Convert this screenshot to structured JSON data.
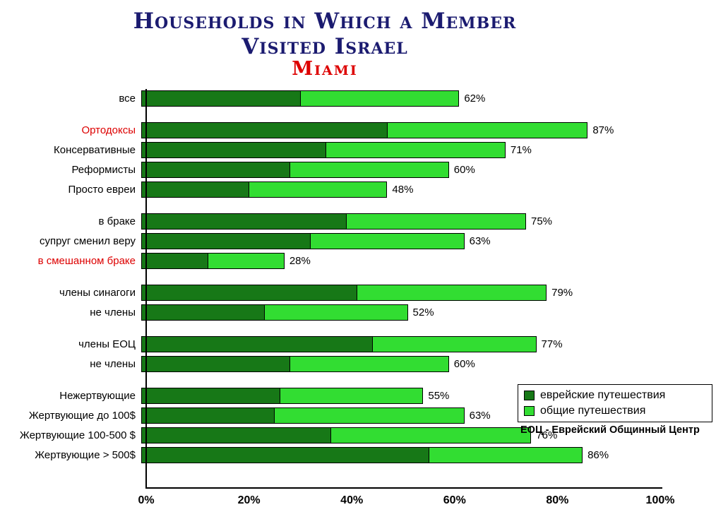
{
  "title": {
    "line1": "Households in Which a Member",
    "line2": "Visited Israel",
    "city": "Miami"
  },
  "colors": {
    "title_navy": "#1B1B70",
    "city_red": "#DD0000",
    "label_red": "#DD0000",
    "label_black": "#000000",
    "jewish_dark_green": "#177817",
    "general_light_green": "#32DD32"
  },
  "legend": {
    "items": [
      {
        "label": "еврейские путешествия",
        "color_key": "jewish_dark_green"
      },
      {
        "label": "общие путешествия",
        "color_key": "general_light_green"
      }
    ],
    "note": "ЕОЦ - Еврейский Общинный Центр"
  },
  "axis": {
    "ticks": [
      "0%",
      "20%",
      "40%",
      "60%",
      "80%",
      "100%"
    ],
    "tick_values": [
      0,
      20,
      40,
      60,
      80,
      100
    ],
    "max": 100
  },
  "chart_data": {
    "type": "bar",
    "orientation": "horizontal",
    "stacked": true,
    "title": "Households in Which a Member Visited Israel — Miami",
    "xlabel": "",
    "ylabel": "",
    "xlim": [
      0,
      100
    ],
    "grid": false,
    "legend_position": "right-inside",
    "series_names": [
      "еврейские путешествия",
      "общие путешествия"
    ],
    "groups": [
      {
        "rows": [
          {
            "label": "все",
            "red": false,
            "jewish": 31,
            "total": 62,
            "value_label": "62%"
          }
        ]
      },
      {
        "rows": [
          {
            "label": "Ортодоксы",
            "red": true,
            "jewish": 48,
            "total": 87,
            "value_label": "87%"
          },
          {
            "label": "Консервативные",
            "red": false,
            "jewish": 36,
            "total": 71,
            "value_label": "71%"
          },
          {
            "label": "Реформисты",
            "red": false,
            "jewish": 29,
            "total": 60,
            "value_label": "60%"
          },
          {
            "label": "Просто евреи",
            "red": false,
            "jewish": 21,
            "total": 48,
            "value_label": "48%"
          }
        ]
      },
      {
        "rows": [
          {
            "label": "в браке",
            "red": false,
            "jewish": 40,
            "total": 75,
            "value_label": "75%"
          },
          {
            "label": "супруг сменил веру",
            "red": false,
            "jewish": 33,
            "total": 63,
            "value_label": "63%"
          },
          {
            "label": "в смешанном браке",
            "red": true,
            "jewish": 13,
            "total": 28,
            "value_label": "28%"
          }
        ]
      },
      {
        "rows": [
          {
            "label": "члены синагоги",
            "red": false,
            "jewish": 42,
            "total": 79,
            "value_label": "79%"
          },
          {
            "label": "не члены",
            "red": false,
            "jewish": 24,
            "total": 52,
            "value_label": "52%"
          }
        ]
      },
      {
        "rows": [
          {
            "label": "члены ЕОЦ",
            "red": false,
            "jewish": 45,
            "total": 77,
            "value_label": "77%"
          },
          {
            "label": "не члены",
            "red": false,
            "jewish": 29,
            "total": 60,
            "value_label": "60%"
          }
        ]
      },
      {
        "rows": [
          {
            "label": "Нежертвующие",
            "red": false,
            "jewish": 27,
            "total": 55,
            "value_label": "55%"
          },
          {
            "label": "Жертвующие до 100$",
            "red": false,
            "jewish": 26,
            "total": 63,
            "value_label": "63%"
          },
          {
            "label": "Жертвующие 100-500 $",
            "red": false,
            "jewish": 37,
            "total": 76,
            "value_label": "76%"
          },
          {
            "label": "Жертвующие > 500$",
            "red": false,
            "jewish": 56,
            "total": 86,
            "value_label": "86%"
          }
        ]
      }
    ]
  }
}
